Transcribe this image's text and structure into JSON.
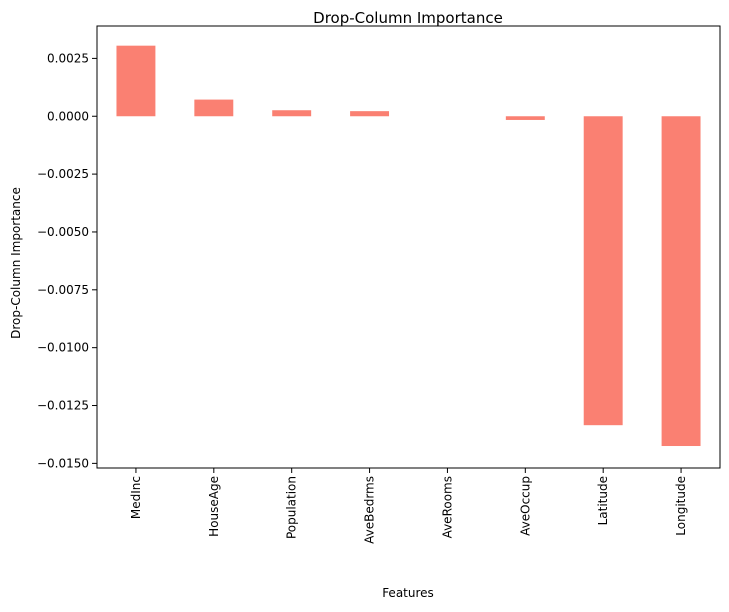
{
  "chart_data": {
    "type": "bar",
    "title": "Drop-Column Importance",
    "xlabel": "Features",
    "ylabel": "Drop-Column Importance",
    "categories": [
      "MedInc",
      "HouseAge",
      "Population",
      "AveBedrms",
      "AveRooms",
      "AveOccup",
      "Latitude",
      "Longitude"
    ],
    "values": [
      0.00305,
      0.00072,
      0.00026,
      0.00022,
      0.0,
      -0.00016,
      -0.01335,
      -0.01425
    ],
    "ylim": [
      -0.0152,
      0.0039
    ],
    "yticks": [
      0.0025,
      0.0,
      -0.0025,
      -0.005,
      -0.0075,
      -0.01,
      -0.0125,
      -0.015
    ],
    "ytick_labels": [
      "0.0025",
      "0.0000",
      "−0.0025",
      "−0.0050",
      "−0.0075",
      "−0.0100",
      "−0.0125",
      "−0.0150"
    ],
    "bar_color": "#fa8072",
    "grid": false,
    "legend": "none"
  }
}
